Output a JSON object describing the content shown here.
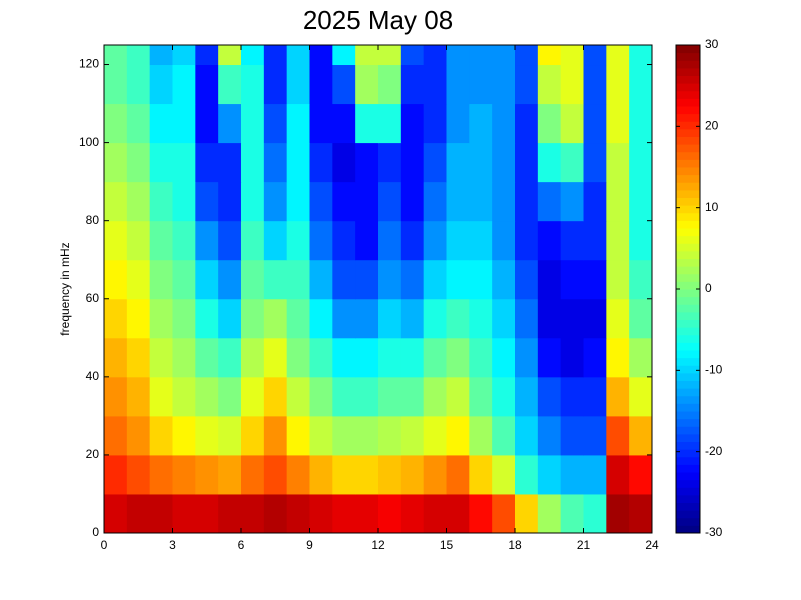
{
  "chart_data": {
    "type": "heatmap",
    "title": "2025 May 08",
    "y_label": "frequency in mHz",
    "xbins": [
      0,
      1,
      2,
      3,
      4,
      5,
      6,
      7,
      8,
      9,
      10,
      11,
      12,
      13,
      14,
      15,
      16,
      17,
      18,
      19,
      20,
      21,
      22,
      23,
      24
    ],
    "ybins": [
      0,
      10,
      20,
      30,
      40,
      50,
      60,
      70,
      80,
      90,
      100,
      110,
      120,
      125
    ],
    "values": [
      [
        25,
        26,
        26,
        25,
        25,
        26,
        26,
        27,
        26,
        25,
        24,
        24,
        23,
        24,
        25,
        25,
        22,
        18,
        10,
        2,
        -3,
        -5,
        28,
        27
      ],
      [
        20,
        18,
        16,
        15,
        14,
        13,
        16,
        18,
        15,
        12,
        10,
        10,
        11,
        12,
        14,
        16,
        10,
        5,
        -5,
        -10,
        -12,
        -12,
        25,
        22
      ],
      [
        16,
        14,
        10,
        8,
        6,
        5,
        10,
        14,
        8,
        4,
        2,
        2,
        3,
        4,
        6,
        8,
        2,
        -3,
        -10,
        -15,
        -18,
        -18,
        18,
        12
      ],
      [
        14,
        12,
        6,
        4,
        2,
        0,
        6,
        10,
        4,
        0,
        -4,
        -4,
        -2,
        -2,
        2,
        4,
        -2,
        -6,
        -12,
        -18,
        -20,
        -20,
        12,
        6
      ],
      [
        12,
        10,
        4,
        2,
        -2,
        -4,
        3,
        6,
        0,
        -4,
        -8,
        -8,
        -6,
        -6,
        -2,
        0,
        -4,
        -8,
        -14,
        -22,
        -24,
        -22,
        8,
        2
      ],
      [
        10,
        8,
        2,
        0,
        -6,
        -10,
        0,
        2,
        -2,
        -8,
        -14,
        -14,
        -10,
        -12,
        -6,
        -4,
        -6,
        -10,
        -16,
        -24,
        -24,
        -24,
        6,
        -2
      ],
      [
        8,
        6,
        0,
        -2,
        -10,
        -14,
        -2,
        -4,
        -4,
        -12,
        -18,
        -18,
        -14,
        -16,
        -10,
        -8,
        -8,
        -12,
        -18,
        -24,
        -22,
        -22,
        4,
        -4
      ],
      [
        6,
        4,
        -2,
        -4,
        -14,
        -18,
        -4,
        -10,
        -6,
        -16,
        -20,
        -22,
        -16,
        -20,
        -14,
        -10,
        -10,
        -14,
        -20,
        -22,
        -20,
        -20,
        4,
        -6
      ],
      [
        4,
        2,
        -4,
        -6,
        -18,
        -20,
        -6,
        -14,
        -8,
        -18,
        -22,
        -22,
        -18,
        -22,
        -16,
        -12,
        -12,
        -14,
        -20,
        -16,
        -14,
        -20,
        4,
        -6
      ],
      [
        2,
        0,
        -6,
        -6,
        -20,
        -20,
        -6,
        -16,
        -8,
        -20,
        -24,
        -22,
        -20,
        -22,
        -18,
        -12,
        -12,
        -14,
        -20,
        -6,
        -4,
        -18,
        4,
        -6
      ],
      [
        0,
        -2,
        -8,
        -8,
        -22,
        -14,
        -6,
        -18,
        -8,
        -22,
        -22,
        -6,
        -6,
        -22,
        -20,
        -14,
        -12,
        -14,
        -20,
        0,
        4,
        -18,
        6,
        -6
      ],
      [
        -2,
        -4,
        -10,
        -8,
        -22,
        -4,
        -6,
        -20,
        -10,
        -22,
        -18,
        2,
        0,
        -20,
        -20,
        -14,
        -14,
        -14,
        -18,
        4,
        6,
        -18,
        6,
        -6
      ],
      [
        -2,
        -4,
        -12,
        -10,
        -20,
        4,
        -8,
        -20,
        -10,
        -22,
        -8,
        4,
        4,
        -18,
        -20,
        -14,
        -14,
        -14,
        -18,
        8,
        6,
        -18,
        6,
        -6
      ]
    ],
    "xlim": [
      0,
      24
    ],
    "xticks": [
      0,
      3,
      6,
      9,
      12,
      15,
      18,
      21,
      24
    ],
    "ylim": [
      0,
      125
    ],
    "yticks": [
      0,
      20,
      40,
      60,
      80,
      100,
      120
    ],
    "zlim": [
      -30,
      30
    ],
    "zticks": [
      -30,
      -20,
      -10,
      0,
      10,
      20,
      30
    ],
    "colormap": "jet"
  }
}
